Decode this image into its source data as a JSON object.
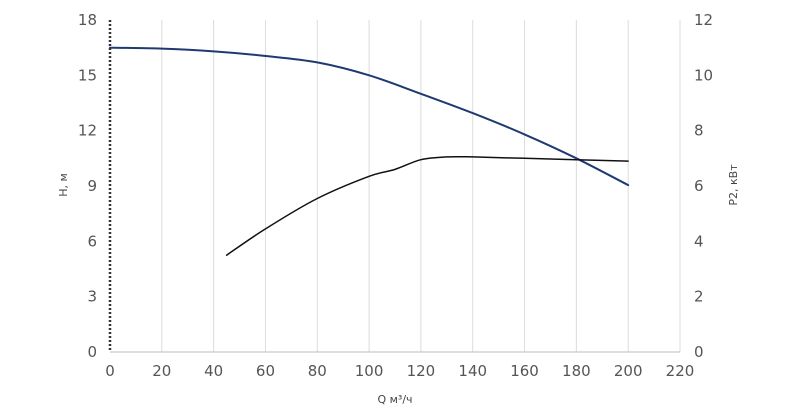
{
  "chart_data": {
    "type": "line",
    "title": "",
    "xlabel": "Q м³/ч",
    "ylabel": "H, м",
    "y2label": "P2, кВт",
    "xlim": [
      0,
      220
    ],
    "ylim": [
      0,
      18
    ],
    "y2lim": [
      0,
      12
    ],
    "xticks": [
      0,
      20,
      40,
      60,
      80,
      100,
      120,
      140,
      160,
      180,
      200,
      220
    ],
    "yticks": [
      0,
      3,
      6,
      9,
      12,
      15,
      18
    ],
    "y2ticks": [
      0,
      2,
      4,
      6,
      8,
      10,
      12
    ],
    "grid": "vertical",
    "series": [
      {
        "axis": "left",
        "color": "#1f3a73",
        "x": [
          0,
          20,
          40,
          60,
          80,
          100,
          120,
          140,
          160,
          180,
          200
        ],
        "y": [
          16.5,
          16.45,
          16.3,
          16.05,
          15.7,
          15.0,
          14.0,
          12.95,
          11.8,
          10.5,
          9.05
        ]
      },
      {
        "axis": "right",
        "color": "#111111",
        "x": [
          45,
          60,
          80,
          100,
          110,
          120,
          130,
          140,
          160,
          180,
          200
        ],
        "y": [
          3.5,
          4.45,
          5.55,
          6.35,
          6.6,
          6.95,
          7.05,
          7.05,
          7.0,
          6.95,
          6.9
        ]
      }
    ]
  }
}
